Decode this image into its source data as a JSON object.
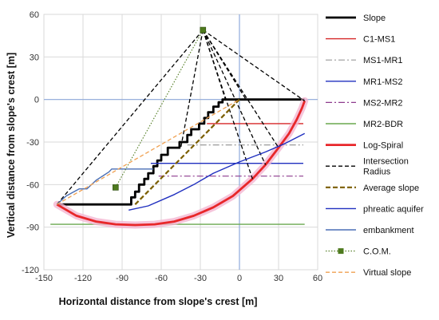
{
  "chart_data": {
    "type": "line",
    "xlabel": "Horizontal distance from slope's crest [m]",
    "ylabel": "Vertical distance from slope's crest [m]",
    "xlim": [
      -150,
      60
    ],
    "ylim": [
      -120,
      60
    ],
    "xticks": [
      -150,
      -120,
      -90,
      -60,
      -30,
      0,
      30,
      60
    ],
    "yticks": [
      60,
      30,
      0,
      -30,
      -60,
      -90,
      -120
    ],
    "legend_position": "right",
    "series": [
      {
        "name": "Slope",
        "color": "#000000",
        "style": "solid-thick",
        "x": [
          -140,
          -83,
          -83,
          -80,
          -80,
          -77,
          -77,
          -73,
          -73,
          -70,
          -70,
          -66,
          -66,
          -63,
          -63,
          -60,
          -60,
          -55,
          -55,
          -46,
          -46,
          -40,
          -40,
          -37,
          -37,
          -31,
          -31,
          -27,
          -27,
          -24,
          -24,
          -20,
          -20,
          -16,
          -16,
          -13,
          -13,
          -9,
          -9,
          -5,
          -5,
          -2,
          -2,
          0,
          0,
          50
        ],
        "y": [
          -74,
          -74,
          -69,
          -69,
          -65,
          -65,
          -60,
          -60,
          -56,
          -56,
          -52,
          -52,
          -47,
          -47,
          -43,
          -43,
          -39,
          -39,
          -34,
          -34,
          -30,
          -30,
          -25,
          -25,
          -21,
          -21,
          -17,
          -17,
          -13,
          -13,
          -9,
          -9,
          -5,
          -5,
          -2,
          -2,
          0,
          0,
          0,
          0,
          0,
          0,
          0,
          0,
          0,
          0
        ]
      },
      {
        "name": "C1-MS1",
        "color": "#d62728",
        "style": "solid",
        "x": [
          -25,
          49
        ],
        "y": [
          -17,
          -17
        ]
      },
      {
        "name": "MS1-MR1",
        "color": "#999999",
        "style": "dashdot",
        "x": [
          -40,
          49
        ],
        "y": [
          -32,
          -32
        ]
      },
      {
        "name": "MR1-MS2",
        "color": "#1f2fbf",
        "style": "solid",
        "x": [
          -68,
          49
        ],
        "y": [
          -45,
          -45
        ]
      },
      {
        "name": "MS2-MR2",
        "color": "#8e3a8e",
        "style": "dashdot",
        "x": [
          -62,
          49
        ],
        "y": [
          -54,
          -54
        ]
      },
      {
        "name": "MR2-BDR",
        "color": "#6aa84f",
        "style": "solid",
        "x": [
          -145,
          50
        ],
        "y": [
          -88,
          -88
        ]
      },
      {
        "name": "Log-Spiral",
        "color": "#e8272a",
        "style": "solid-thick",
        "x": [
          -140,
          -125,
          -110,
          -95,
          -80,
          -65,
          -50,
          -35,
          -20,
          -5,
          10,
          20,
          30,
          38,
          44,
          48,
          50
        ],
        "y": [
          -74,
          -82,
          -86,
          -88,
          -88.5,
          -88,
          -86,
          -82,
          -76,
          -68,
          -56,
          -46,
          -34,
          -24,
          -14,
          -6,
          -1
        ]
      },
      {
        "name": "Intersection Radius",
        "color": "#000000",
        "style": "dashed",
        "x": [
          -140,
          -28,
          50
        ],
        "y": [
          -74,
          49,
          -1
        ]
      },
      {
        "name": "Average slope",
        "color": "#7b5e00",
        "style": "dashed-thick",
        "x": [
          -80,
          0
        ],
        "y": [
          -74,
          0
        ]
      },
      {
        "name": "phreatic aquifer",
        "color": "#1f2fbf",
        "style": "solid",
        "x": [
          -85,
          -70,
          -50,
          -35,
          -20,
          0,
          20,
          35,
          50
        ],
        "y": [
          -78,
          -75,
          -67,
          -60,
          -52,
          -44,
          -37,
          -31,
          -24
        ]
      },
      {
        "name": "embankment",
        "color": "#4a6fb5",
        "style": "solid",
        "x": [
          -140,
          -133,
          -123,
          -117,
          -110,
          -100,
          -98,
          -86,
          -80,
          -76,
          -72,
          -70,
          -68,
          -66
        ],
        "y": [
          -74,
          -68,
          -63,
          -63,
          -57,
          -51,
          -49,
          -49,
          -49,
          -49,
          -49,
          -49,
          -49,
          -49
        ]
      },
      {
        "name": "C.O.M.",
        "color": "#4e7a1e",
        "style": "dotted",
        "x": [
          -28,
          -95
        ],
        "y": [
          49,
          -62
        ]
      },
      {
        "name": "Virtual slope",
        "color": "#f0a050",
        "style": "dashed",
        "x": [
          -140,
          0
        ],
        "y": [
          -74,
          0
        ]
      }
    ],
    "points": [
      {
        "name": "C.O.M.",
        "x": -28,
        "y": 49
      },
      {
        "name": "C.O.M.",
        "x": -95,
        "y": -62
      }
    ]
  },
  "legend": {
    "items": [
      {
        "label": "Slope",
        "color": "#000000",
        "style": "solid-thick"
      },
      {
        "label": "C1-MS1",
        "color": "#d62728",
        "style": "solid"
      },
      {
        "label": "MS1-MR1",
        "color": "#999999",
        "style": "dashdot"
      },
      {
        "label": "MR1-MS2",
        "color": "#1f2fbf",
        "style": "solid"
      },
      {
        "label": "MS2-MR2",
        "color": "#8e3a8e",
        "style": "dashdot"
      },
      {
        "label": "MR2-BDR",
        "color": "#6aa84f",
        "style": "solid"
      },
      {
        "label": "Log-Spiral",
        "color": "#e8272a",
        "style": "solid-thick"
      },
      {
        "label": "Intersection\nRadius",
        "color": "#000000",
        "style": "dashed"
      },
      {
        "label": "Average slope",
        "color": "#7b5e00",
        "style": "dashed-thick"
      },
      {
        "label": "phreatic aquifer",
        "color": "#1f2fbf",
        "style": "solid"
      },
      {
        "label": "embankment",
        "color": "#4a6fb5",
        "style": "solid"
      },
      {
        "label": "C.O.M.",
        "color": "#4e7a1e",
        "style": "dotted-marker"
      },
      {
        "label": "Virtual slope",
        "color": "#f0a050",
        "style": "dashed"
      }
    ]
  }
}
